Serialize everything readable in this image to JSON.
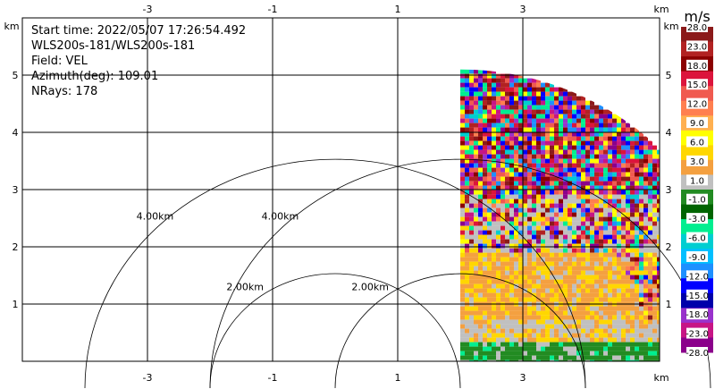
{
  "chart_data": {
    "type": "heatmap",
    "field": "VEL",
    "x": {
      "unit": "km",
      "range": [
        -4,
        4.2
      ],
      "ticks": [
        -3,
        -1,
        1,
        3
      ]
    },
    "y": {
      "unit": "km",
      "range": [
        0,
        5.8
      ],
      "ticks": [
        1,
        2,
        3,
        4,
        5
      ]
    },
    "info": [
      "Start time: 2022/05/07 17:26:54.492",
      "WLS200s-181/WLS200s-181",
      "Field: VEL",
      "Azimuth(deg): 109.01",
      "NRays: 178"
    ],
    "range_rings": [
      {
        "center_x": 0,
        "radius": 2,
        "label": "2.00km"
      },
      {
        "center_x": 0,
        "radius": 4,
        "label": "4.00km"
      },
      {
        "center_x": 2,
        "radius": 2,
        "label": "2.00km"
      },
      {
        "center_x": 2,
        "radius": 4,
        "label": "4.00km"
      }
    ],
    "sector": {
      "center_x": 2,
      "center_y": 0,
      "max_range_km": 5.1,
      "az_start_deg": 0,
      "az_end_deg": 90
    },
    "colorbar": {
      "unit": "m/s",
      "labels": [
        "28.0",
        "23.0",
        "18.0",
        "15.0",
        "12.0",
        "9.0",
        "6.0",
        "3.0",
        "1.0",
        "-1.0",
        "-3.0",
        "-6.0",
        "-9.0",
        "-12.0",
        "-15.0",
        "-18.0",
        "-23.0",
        "-28.0"
      ],
      "colors": [
        "#8b1a1a",
        "#b22222",
        "#8b0000",
        "#dc143c",
        "#f05a50",
        "#ff7f50",
        "#ffb050",
        "#ffff00",
        "#ffd700",
        "#f4a040",
        "#c0c0c0",
        "#228b22",
        "#006400",
        "#00ee90",
        "#00ced1",
        "#00bfff",
        "#1e90ff",
        "#0000ff",
        "#0000aa",
        "#9932cc",
        "#c71585",
        "#8b008b"
      ]
    }
  },
  "axis": {
    "unit_label": "km"
  }
}
